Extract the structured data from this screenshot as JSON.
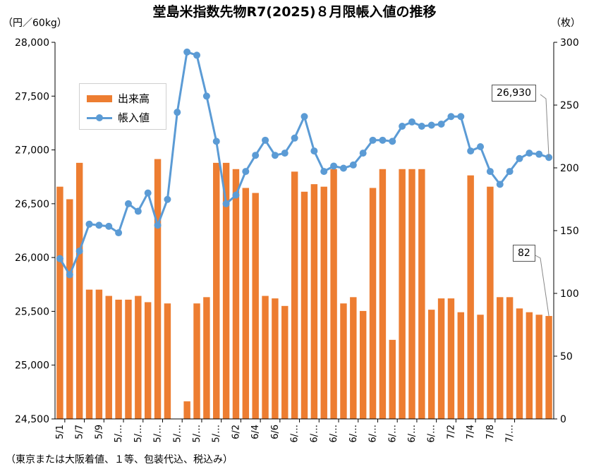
{
  "title": "堂島米指数先物R7(2025)８月限帳入値の推移",
  "left_unit": "（円／60kg）",
  "right_unit": "（枚）",
  "footnote": "（東京または大阪着値、１等、包装代込、税込み）",
  "legend": {
    "bars_label": "出来高",
    "line_label": "帳入値"
  },
  "callouts": {
    "price": "26,930",
    "volume": "82"
  },
  "colors": {
    "bar": "#ED7D31",
    "line": "#5B9BD5"
  },
  "chart_data": {
    "type": "bar+line",
    "title": "堂島米指数先物R7(2025)８月限帳入値の推移",
    "y_left": {
      "label": "（円／60kg）",
      "ylim": [
        24500,
        28000
      ],
      "ticks": [
        "24,500",
        "25,000",
        "25,500",
        "26,000",
        "26,500",
        "27,000",
        "27,500",
        "28,000"
      ]
    },
    "y_right": {
      "label": "（枚）",
      "ylim": [
        0,
        300
      ],
      "ticks": [
        "0",
        "50",
        "100",
        "150",
        "200",
        "250",
        "300"
      ]
    },
    "x_tick_labels": [
      "5/1",
      "5/7",
      "5/9",
      "5/…",
      "5/…",
      "5/…",
      "5/…",
      "5/…",
      "5/…",
      "6/2",
      "6/4",
      "6/6",
      "6/…",
      "6/…",
      "6/…",
      "6/…",
      "6/…",
      "6/…",
      "6/…",
      "6/…",
      "7/2",
      "7/4",
      "7/8",
      "7/…"
    ],
    "legend_position": "upper-left",
    "grid": false,
    "series": [
      {
        "name": "出来高",
        "axis": "right",
        "kind": "bar",
        "values": [
          185,
          175,
          204,
          103,
          103,
          98,
          95,
          95,
          98,
          93,
          207,
          92,
          0,
          14,
          92,
          97,
          204,
          204,
          199,
          184,
          180,
          98,
          96,
          90,
          197,
          181,
          187,
          185,
          199,
          92,
          97,
          86,
          184,
          199,
          63,
          199,
          199,
          199,
          87,
          96,
          96,
          85,
          194,
          83,
          185,
          97,
          97,
          88,
          85,
          83,
          82
        ]
      },
      {
        "name": "帳入値",
        "axis": "left",
        "kind": "line",
        "values": [
          25990,
          25840,
          26060,
          26310,
          26300,
          26290,
          26230,
          26500,
          26430,
          26600,
          26300,
          26540,
          27350,
          27910,
          27880,
          27500,
          27080,
          26500,
          26580,
          26800,
          26950,
          27090,
          26950,
          26970,
          27110,
          27310,
          26990,
          26800,
          26850,
          26830,
          26860,
          26970,
          27090,
          27090,
          27080,
          27220,
          27260,
          27220,
          27230,
          27240,
          27310,
          27310,
          26990,
          27030,
          26800,
          26680,
          26800,
          26920,
          26970,
          26960,
          26930
        ]
      }
    ]
  }
}
